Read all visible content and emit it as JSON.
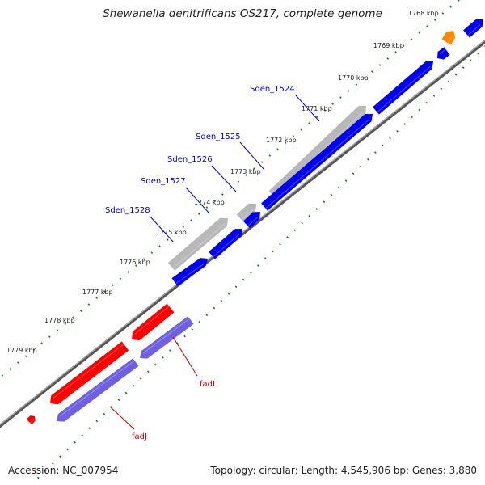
{
  "title": "Shewanella denitrificans OS217, complete genome",
  "footer": {
    "accession": "Accession: NC_007954",
    "summary": "Topology: circular; Length: 4,545,906 bp; Genes: 3,880"
  },
  "colors": {
    "backbone": "#808080",
    "ticks": "#1a7a1a",
    "label_link_blue": "#0000cc",
    "label_link_red": "#cc0000"
  },
  "ticks": [
    {
      "label": "1768 kbp"
    },
    {
      "label": "1769 kbp"
    },
    {
      "label": "1770 kbp"
    },
    {
      "label": "1771 kbp"
    },
    {
      "label": "1772 kbp"
    },
    {
      "label": "1773 kbp"
    },
    {
      "label": "1774 kbp"
    },
    {
      "label": "1775 kbp"
    },
    {
      "label": "1776 kbp"
    },
    {
      "label": "1777 kbp"
    },
    {
      "label": "1778 kbp"
    },
    {
      "label": "1779 kbp"
    }
  ],
  "gene_labels": [
    {
      "label": "Sden_1524",
      "color": "#0000cc"
    },
    {
      "label": "Sden_1525",
      "color": "#0000cc"
    },
    {
      "label": "Sden_1526",
      "color": "#0000cc"
    },
    {
      "label": "Sden_1527",
      "color": "#0000cc"
    },
    {
      "label": "Sden_1528",
      "color": "#0000cc"
    },
    {
      "label": "fadI",
      "color": "#cc0000"
    },
    {
      "label": "fadJ",
      "color": "#cc0000"
    }
  ],
  "features": [
    {
      "track": "outer-forward",
      "color": "#ff8800"
    },
    {
      "track": "outer-forward",
      "color": "#b8b8b8"
    },
    {
      "track": "outer-forward",
      "color": "#b8b8b8"
    },
    {
      "track": "outer-forward",
      "color": "#b8b8b8"
    },
    {
      "track": "outer-forward",
      "color": "#ff0000"
    },
    {
      "track": "outer-forward",
      "color": "#ff0000"
    },
    {
      "track": "outer-forward",
      "color": "#ff0000"
    },
    {
      "track": "inner-forward",
      "color": "#0000ee"
    },
    {
      "track": "inner-forward",
      "color": "#0000ee"
    },
    {
      "track": "inner-forward",
      "color": "#0000ee"
    },
    {
      "track": "inner-forward",
      "color": "#0000ee"
    },
    {
      "track": "inner-forward",
      "color": "#0000ee"
    },
    {
      "track": "inner-forward",
      "color": "#0000ee"
    },
    {
      "track": "inner-forward",
      "color": "#0000ee"
    },
    {
      "track": "inner-forward",
      "color": "#7060e0"
    },
    {
      "track": "inner-forward",
      "color": "#7060e0"
    }
  ]
}
